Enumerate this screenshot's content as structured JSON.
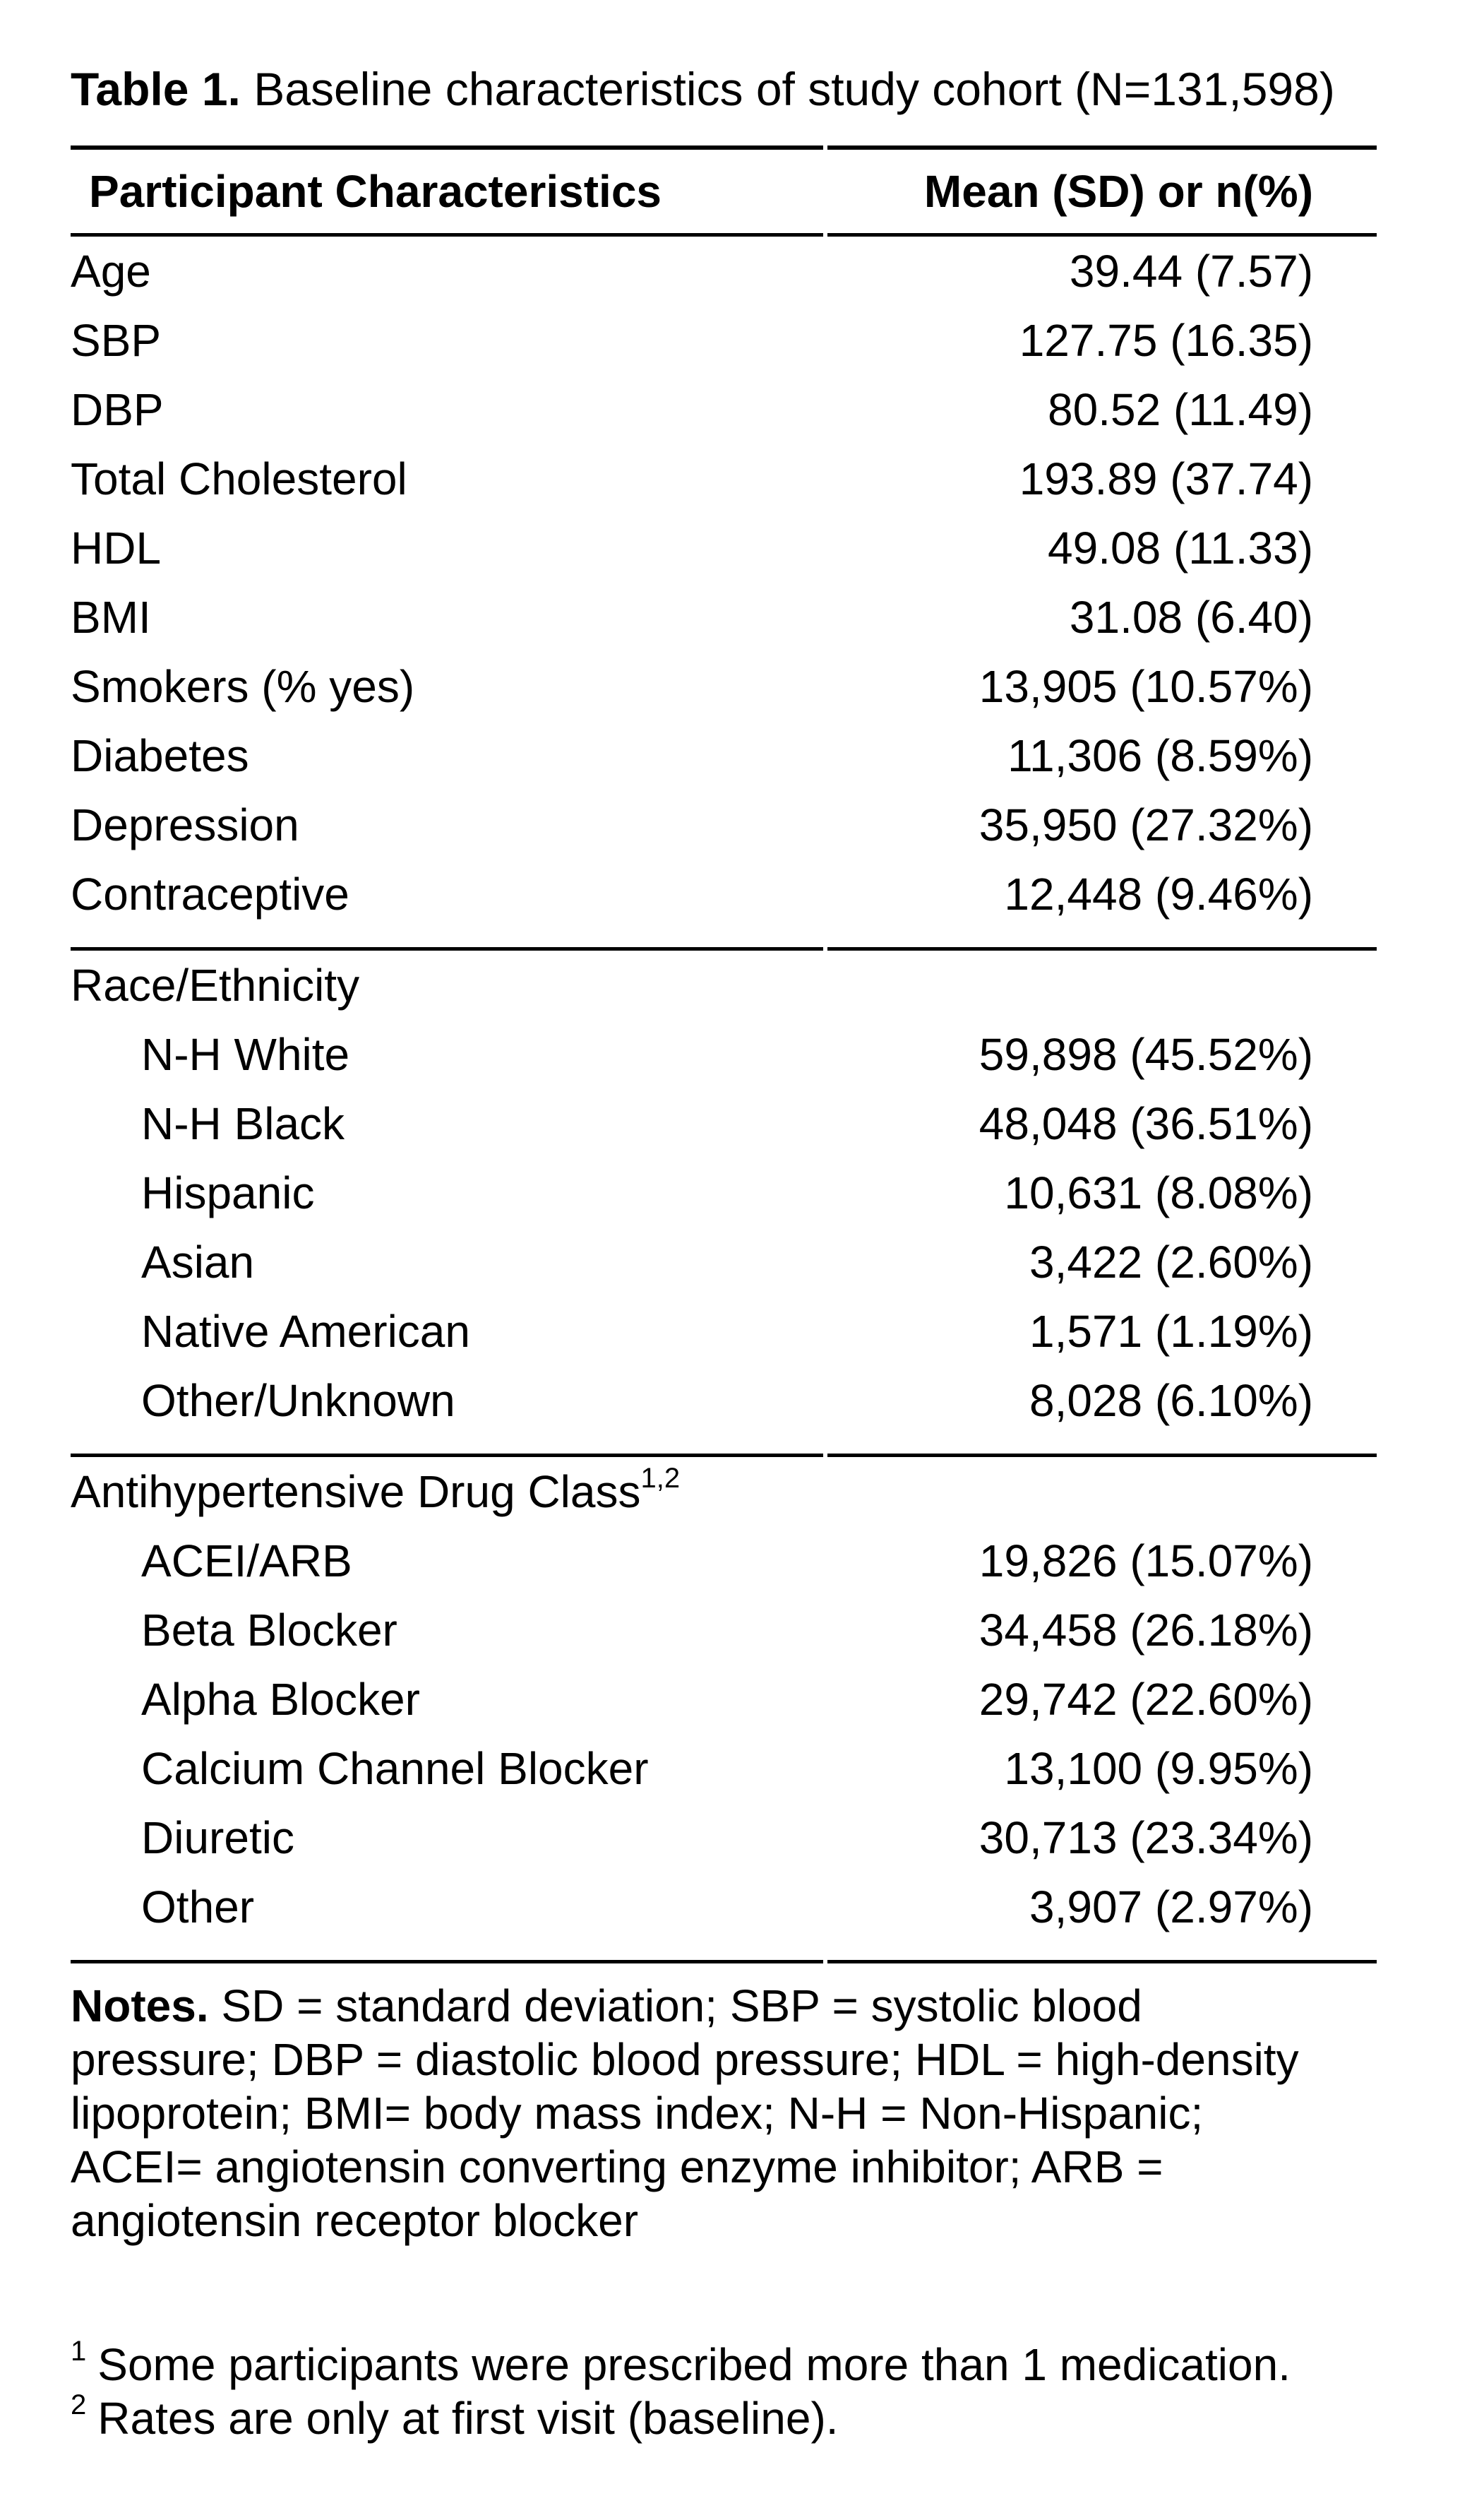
{
  "title": {
    "label": "Table 1.",
    "text": " Baseline characteristics of study cohort (N=131,598)"
  },
  "table": {
    "header": {
      "col1": "Participant Characteristics",
      "col2": "Mean (SD) or n(%)"
    },
    "main_rows": [
      {
        "label": "Age",
        "value": "39.44 (7.57)"
      },
      {
        "label": "SBP",
        "value": "127.75 (16.35)"
      },
      {
        "label": "DBP",
        "value": "80.52 (11.49)"
      },
      {
        "label": "Total Cholesterol",
        "value": "193.89 (37.74)"
      },
      {
        "label": "HDL",
        "value": "49.08 (11.33)"
      },
      {
        "label": "BMI",
        "value": "31.08 (6.40)"
      },
      {
        "label": "Smokers (% yes)",
        "value": "13,905 (10.57%)"
      },
      {
        "label": "Diabetes",
        "value": "11,306 (8.59%)"
      },
      {
        "label": "Depression",
        "value": "35,950 (27.32%)"
      },
      {
        "label": "Contraceptive",
        "value": "12,448 (9.46%)"
      }
    ],
    "race_section": {
      "header": "Race/Ethnicity",
      "rows": [
        {
          "label": "N-H White",
          "value": "59,898 (45.52%)"
        },
        {
          "label": "N-H Black",
          "value": "48,048 (36.51%)"
        },
        {
          "label": "Hispanic",
          "value": "10,631 (8.08%)"
        },
        {
          "label": "Asian",
          "value": "3,422 (2.60%)"
        },
        {
          "label": "Native American",
          "value": "1,571 (1.19%)"
        },
        {
          "label": "Other/Unknown",
          "value": "8,028 (6.10%)"
        }
      ]
    },
    "drug_section": {
      "header": "Antihypertensive Drug Class",
      "header_sup": "1,2",
      "rows": [
        {
          "label": "ACEI/ARB",
          "value": "19,826 (15.07%)"
        },
        {
          "label": "Beta Blocker",
          "value": "34,458 (26.18%)"
        },
        {
          "label": "Alpha Blocker",
          "value": "29,742 (22.60%)"
        },
        {
          "label": "Calcium Channel Blocker",
          "value": "13,100 (9.95%)"
        },
        {
          "label": "Diuretic",
          "value": "30,713 (23.34%)"
        },
        {
          "label": "Other",
          "value": "3,907 (2.97%)"
        }
      ]
    }
  },
  "notes": {
    "label": "Notes.",
    "lines": [
      " SD = standard deviation; SBP = systolic blood",
      "pressure; DBP = diastolic blood pressure; HDL = high-density",
      "lipoprotein; BMI= body mass index; N-H = Non-Hispanic;",
      "ACEI= angiotensin converting enzyme inhibitor; ARB =",
      "angiotensin receptor blocker"
    ]
  },
  "footnotes": [
    {
      "marker": "1",
      "text": "Some participants were prescribed more than 1 medication."
    },
    {
      "marker": "2",
      "text": "Rates are only at first visit (baseline)."
    }
  ]
}
